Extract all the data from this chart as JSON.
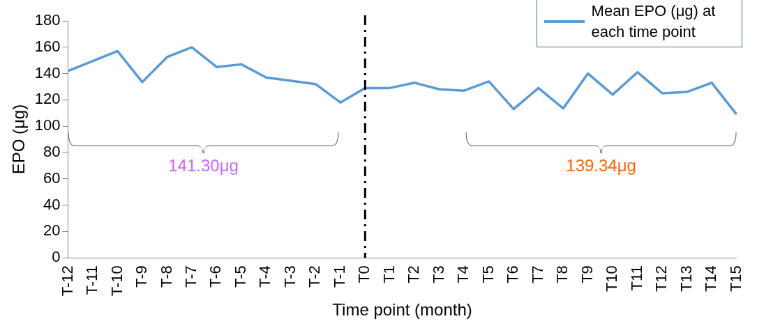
{
  "chart_data": {
    "type": "line",
    "xlabel": "Time point (month)",
    "ylabel": "EPO (μg)",
    "categories": [
      "T-12",
      "T-11",
      "T-10",
      "T-9",
      "T-8",
      "T-7",
      "T-6",
      "T-5",
      "T-4",
      "T-3",
      "T-2",
      "T-1",
      "T0",
      "T1",
      "T2",
      "T3",
      "T4",
      "T5",
      "T6",
      "T7",
      "T8",
      "T9",
      "T10",
      "T11",
      "T12",
      "T13",
      "T14",
      "T15"
    ],
    "series": [
      {
        "name": "Mean EPO (μg) at each time point",
        "color": "#5b9bd5",
        "values": [
          142,
          149.5,
          157,
          133.5,
          152.5,
          160,
          145,
          147,
          137,
          134.5,
          132,
          118,
          129,
          129,
          133,
          128,
          127,
          134,
          113,
          129,
          113.5,
          140,
          124,
          141,
          125,
          126,
          133,
          109
        ]
      }
    ],
    "ylim": [
      0,
      180
    ],
    "yticks": [
      0,
      20,
      40,
      60,
      80,
      100,
      120,
      140,
      160,
      180
    ],
    "grid": false,
    "legend": "top right",
    "marker": "none",
    "line_style": "solid",
    "ref_lines": [
      {
        "axis": "x",
        "value": "T0",
        "color": "#000000",
        "line_style": "dashed"
      }
    ],
    "annotations": [
      "141.30μg",
      "139.34μg"
    ]
  }
}
